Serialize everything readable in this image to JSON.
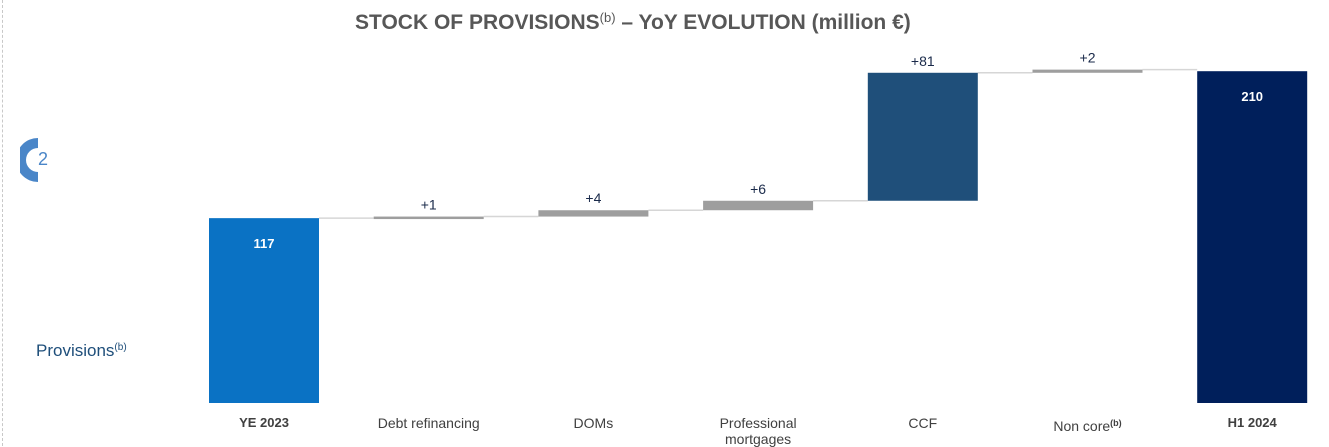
{
  "chart_data": {
    "type": "waterfall",
    "title": "STOCK OF PROVISIONS",
    "title_sup": "(b)",
    "title_rest": " – YoY EVOLUTION (million €)",
    "row_label": "Provisions",
    "row_label_sup": "(b)",
    "badge_number": "2",
    "categories": [
      "YE 2023",
      "Debt refinancing",
      "DOMs",
      "Professional mortgages",
      "CCF",
      "Non core",
      "H1 2024"
    ],
    "category_sups": [
      "",
      "",
      "",
      "",
      "",
      "(b)",
      ""
    ],
    "bold_categories": [
      "YE 2023",
      "H1 2024"
    ],
    "values": [
      117,
      1,
      4,
      6,
      81,
      2,
      210
    ],
    "kinds": [
      "total",
      "delta",
      "delta",
      "delta",
      "delta",
      "delta",
      "total"
    ],
    "data_labels": [
      "117",
      "+1",
      "+4",
      "+6",
      "+81",
      "+2",
      "210"
    ],
    "colors": [
      "#0a72c4",
      "#9e9e9e",
      "#9e9e9e",
      "#9e9e9e",
      "#1f4f7a",
      "#9e9e9e",
      "#001f5b"
    ],
    "label_color_inside": "#ffffff",
    "label_color_above": "#1a2a4a",
    "connector_color": "#d6d6d6"
  }
}
